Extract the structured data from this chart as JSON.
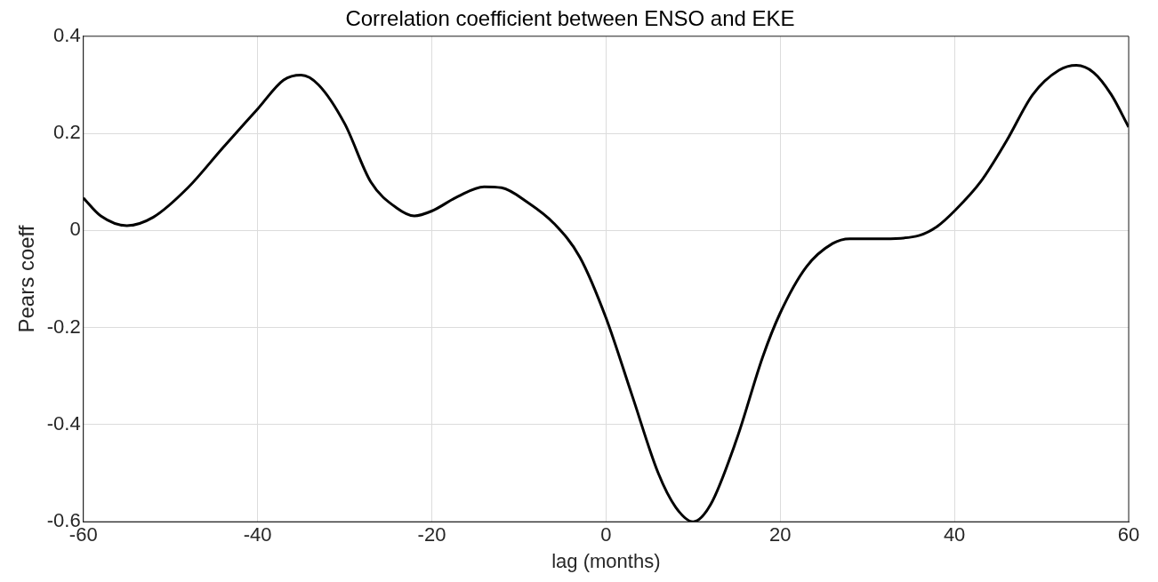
{
  "chart_data": {
    "type": "line",
    "title": "Correlation coefficient between ENSO and EKE",
    "xlabel": "lag (months)",
    "ylabel": "Pears coeff",
    "x": [
      -60,
      -58,
      -55,
      -52,
      -48,
      -44,
      -40,
      -37,
      -35,
      -33,
      -30,
      -27,
      -24,
      -22,
      -20,
      -17,
      -14,
      -12,
      -9,
      -6,
      -3,
      0,
      3,
      6,
      8,
      10,
      12,
      15,
      18,
      20,
      23,
      26,
      28,
      32,
      36,
      38,
      40,
      43,
      46,
      49,
      52,
      54,
      56,
      58,
      60
    ],
    "series": [
      {
        "color": "#000000",
        "values": [
          0.067,
          0.03,
          0.01,
          0.027,
          0.088,
          0.17,
          0.25,
          0.31,
          0.32,
          0.3,
          0.22,
          0.1,
          0.046,
          0.03,
          0.04,
          0.07,
          0.09,
          0.088,
          0.058,
          0.015,
          -0.055,
          -0.18,
          -0.34,
          -0.5,
          -0.57,
          -0.6,
          -0.565,
          -0.43,
          -0.26,
          -0.17,
          -0.075,
          -0.027,
          -0.017,
          -0.017,
          -0.01,
          0.008,
          0.04,
          0.1,
          0.185,
          0.28,
          0.33,
          0.34,
          0.325,
          0.28,
          0.213
        ]
      }
    ],
    "xlim": [
      -60,
      60
    ],
    "xticks": [
      -60,
      -40,
      -20,
      0,
      20,
      40,
      60
    ],
    "ylim": [
      -0.6,
      0.4
    ],
    "yticks": [
      -0.6,
      -0.4,
      -0.2,
      0,
      0.2,
      0.4
    ],
    "grid": true,
    "legend": false,
    "marker": "none",
    "line_style": "solid"
  }
}
